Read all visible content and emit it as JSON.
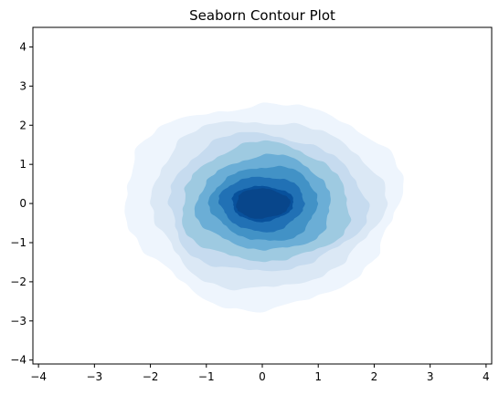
{
  "chart_data": {
    "type": "contour",
    "title": "Seaborn Contour Plot",
    "xlabel": "",
    "ylabel": "",
    "xlim": [
      -4.1,
      4.1
    ],
    "ylim": [
      -4.1,
      4.5
    ],
    "xticks": [
      -4,
      -3,
      -2,
      -1,
      0,
      1,
      2,
      3,
      4
    ],
    "yticks": [
      -4,
      -3,
      -2,
      -1,
      0,
      1,
      2,
      3,
      4
    ],
    "xtick_labels": [
      "−4",
      "−3",
      "−2",
      "−1",
      "0",
      "1",
      "2",
      "3",
      "4"
    ],
    "ytick_labels": [
      "−4",
      "−3",
      "−2",
      "−1",
      "0",
      "1",
      "2",
      "3",
      "4"
    ],
    "grid": false,
    "legend": "none",
    "colormap": "Blues",
    "filled": true,
    "levels": [
      {
        "level": 1,
        "color": "#eef5fd",
        "center": [
          0.0,
          0.0
        ],
        "rx": 2.45,
        "ry": 2.6
      },
      {
        "level": 2,
        "color": "#dbe8f5",
        "center": [
          0.05,
          0.0
        ],
        "rx": 2.05,
        "ry": 2.15
      },
      {
        "level": 3,
        "color": "#c6dbef",
        "center": [
          0.05,
          0.0
        ],
        "rx": 1.75,
        "ry": 1.75
      },
      {
        "level": 4,
        "color": "#9ecae1",
        "center": [
          0.05,
          0.0
        ],
        "rx": 1.5,
        "ry": 1.5
      },
      {
        "level": 5,
        "color": "#6baed6",
        "center": [
          0.05,
          0.0
        ],
        "rx": 1.2,
        "ry": 1.2
      },
      {
        "level": 6,
        "color": "#4292c6",
        "center": [
          0.05,
          0.0
        ],
        "rx": 0.95,
        "ry": 0.95
      },
      {
        "level": 7,
        "color": "#2171b5",
        "center": [
          0.0,
          0.0
        ],
        "rx": 0.75,
        "ry": 0.7
      },
      {
        "level": 8,
        "color": "#08519c",
        "center": [
          0.0,
          0.0
        ],
        "rx": 0.55,
        "ry": 0.45
      },
      {
        "level": 9,
        "color": "#08468b",
        "center": [
          0.0,
          0.0
        ],
        "rx": 0.48,
        "ry": 0.38
      }
    ]
  }
}
